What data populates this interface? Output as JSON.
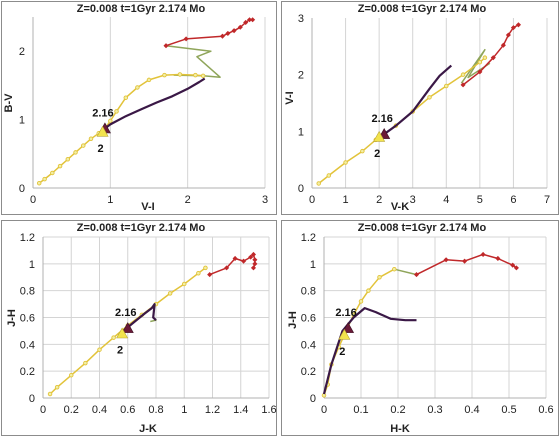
{
  "colors": {
    "yellow_track": "#E2C33A",
    "yellow_marker_face": "#F2EFA6",
    "dark_track": "#3A1846",
    "red_track": "#C0282A",
    "olive_track": "#8FA55A",
    "grid": "#D4D4D4",
    "tri_marker": "#F2E34D",
    "tri_marker_dark": "#6B1A38",
    "frame": "#8C8C8C"
  },
  "chart_data": [
    {
      "type": "scatter",
      "title": "Z=0.008  t=1Gyr  2.174 Mo",
      "xlabel": "V-I",
      "ylabel": "B-V",
      "xlim": [
        0,
        3
      ],
      "ylim": [
        0,
        2.5
      ],
      "xticks": [
        "0",
        "1",
        "2",
        "3"
      ],
      "yticks": [
        "0",
        "1",
        "2"
      ],
      "xtick_values": [
        0,
        1,
        2,
        3
      ],
      "ytick_values": [
        0,
        1,
        2
      ],
      "grid": "vertical",
      "series": [
        {
          "role": "yellow",
          "values": [
            [
              0.08,
              0.07
            ],
            [
              0.15,
              0.13
            ],
            [
              0.25,
              0.22
            ],
            [
              0.35,
              0.32
            ],
            [
              0.45,
              0.42
            ],
            [
              0.55,
              0.52
            ],
            [
              0.65,
              0.62
            ],
            [
              0.75,
              0.72
            ],
            [
              0.85,
              0.8
            ],
            [
              0.93,
              0.87
            ],
            [
              1.0,
              0.98
            ],
            [
              1.08,
              1.12
            ],
            [
              1.2,
              1.32
            ],
            [
              1.35,
              1.47
            ],
            [
              1.5,
              1.58
            ],
            [
              1.7,
              1.65
            ],
            [
              1.9,
              1.66
            ],
            [
              2.1,
              1.65
            ],
            [
              2.2,
              1.64
            ]
          ]
        },
        {
          "role": "dark",
          "values": [
            [
              0.93,
              0.87
            ],
            [
              1.0,
              0.93
            ],
            [
              1.2,
              1.05
            ],
            [
              1.4,
              1.15
            ],
            [
              1.6,
              1.25
            ],
            [
              1.8,
              1.34
            ],
            [
              2.0,
              1.45
            ],
            [
              2.15,
              1.55
            ],
            [
              2.22,
              1.6
            ]
          ]
        },
        {
          "role": "olive",
          "values": [
            [
              1.82,
              1.65
            ],
            [
              2.2,
              1.64
            ],
            [
              2.42,
              1.62
            ],
            [
              2.12,
              1.92
            ],
            [
              2.3,
              2.0
            ],
            [
              1.72,
              2.08
            ]
          ]
        },
        {
          "role": "red",
          "values": [
            [
              1.72,
              2.08
            ],
            [
              1.98,
              2.18
            ],
            [
              2.45,
              2.22
            ],
            [
              2.52,
              2.26
            ],
            [
              2.6,
              2.3
            ],
            [
              2.68,
              2.35
            ],
            [
              2.75,
              2.42
            ],
            [
              2.8,
              2.46
            ],
            [
              2.84,
              2.46
            ]
          ]
        }
      ],
      "markers": [
        {
          "label": "2.16",
          "x": 0.93,
          "y": 0.87,
          "kind": "dark"
        },
        {
          "label": "2",
          "x": 0.9,
          "y": 0.82,
          "kind": "yellow"
        }
      ]
    },
    {
      "type": "scatter",
      "title": "Z=0.008  t=1Gyr  2.174 Mo",
      "xlabel": "V-K",
      "ylabel": "V-I",
      "xlim": [
        0,
        7
      ],
      "ylim": [
        0,
        3
      ],
      "xticks": [
        "0",
        "1",
        "2",
        "3",
        "4",
        "5",
        "6",
        "7"
      ],
      "yticks": [
        "0",
        "1",
        "2",
        "3"
      ],
      "xtick_values": [
        0,
        1,
        2,
        3,
        4,
        5,
        6,
        7
      ],
      "ytick_values": [
        0,
        1,
        2,
        3
      ],
      "grid": "vertical",
      "series": [
        {
          "role": "yellow",
          "values": [
            [
              0.2,
              0.08
            ],
            [
              0.5,
              0.22
            ],
            [
              1.0,
              0.45
            ],
            [
              1.5,
              0.65
            ],
            [
              1.9,
              0.85
            ],
            [
              2.1,
              0.93
            ],
            [
              2.5,
              1.1
            ],
            [
              3.0,
              1.35
            ],
            [
              3.5,
              1.6
            ],
            [
              4.0,
              1.8
            ],
            [
              4.5,
              2.0
            ],
            [
              5.0,
              2.22
            ],
            [
              5.15,
              2.3
            ]
          ]
        },
        {
          "role": "dark",
          "values": [
            [
              2.1,
              0.93
            ],
            [
              2.5,
              1.1
            ],
            [
              3.0,
              1.35
            ],
            [
              3.5,
              1.75
            ],
            [
              3.8,
              1.98
            ],
            [
              4.15,
              2.16
            ]
          ]
        },
        {
          "role": "olive",
          "values": [
            [
              4.45,
              1.85
            ],
            [
              5.15,
              2.44
            ],
            [
              4.65,
              1.95
            ],
            [
              5.3,
              2.2
            ]
          ]
        },
        {
          "role": "red",
          "values": [
            [
              4.5,
              1.82
            ],
            [
              5.0,
              2.05
            ],
            [
              5.4,
              2.3
            ],
            [
              5.7,
              2.52
            ],
            [
              5.85,
              2.7
            ],
            [
              6.0,
              2.83
            ],
            [
              6.15,
              2.88
            ]
          ]
        }
      ],
      "markers": [
        {
          "label": "2.16",
          "x": 2.15,
          "y": 0.95,
          "kind": "dark"
        },
        {
          "label": "2",
          "x": 2.0,
          "y": 0.9,
          "kind": "yellow"
        }
      ]
    },
    {
      "type": "scatter",
      "title": "Z=0.008  t=1Gyr  2.174 Mo",
      "xlabel": "J-K",
      "ylabel": "J-H",
      "xlim": [
        0,
        1.6
      ],
      "ylim": [
        0,
        1.2
      ],
      "xticks": [
        "0",
        "0.2",
        "0.4",
        "0.6",
        "0.8",
        "1",
        "1.2",
        "1.4",
        "1.6"
      ],
      "yticks": [
        "0",
        "0.2",
        "0.4",
        "0.6",
        "0.8",
        "1",
        "1.2"
      ],
      "xtick_values": [
        0,
        0.2,
        0.4,
        0.6,
        0.8,
        1,
        1.2,
        1.4,
        1.6
      ],
      "ytick_values": [
        0,
        0.2,
        0.4,
        0.6,
        0.8,
        1,
        1.2
      ],
      "grid": "both",
      "series": [
        {
          "role": "yellow",
          "values": [
            [
              0.05,
              0.03
            ],
            [
              0.1,
              0.08
            ],
            [
              0.2,
              0.17
            ],
            [
              0.3,
              0.26
            ],
            [
              0.4,
              0.36
            ],
            [
              0.5,
              0.45
            ],
            [
              0.6,
              0.54
            ],
            [
              0.7,
              0.62
            ],
            [
              0.8,
              0.7
            ],
            [
              0.9,
              0.78
            ],
            [
              1.0,
              0.85
            ],
            [
              1.1,
              0.93
            ],
            [
              1.15,
              0.97
            ]
          ]
        },
        {
          "role": "dark",
          "values": [
            [
              0.57,
              0.5
            ],
            [
              0.65,
              0.57
            ],
            [
              0.72,
              0.63
            ],
            [
              0.77,
              0.67
            ],
            [
              0.79,
              0.7
            ],
            [
              0.78,
              0.6
            ],
            [
              0.8,
              0.58
            ]
          ]
        },
        {
          "role": "olive",
          "values": [
            [
              0.78,
              0.6
            ],
            [
              0.8,
              0.58
            ],
            [
              0.76,
              0.57
            ]
          ]
        },
        {
          "role": "red",
          "values": [
            [
              1.18,
              0.92
            ],
            [
              1.3,
              0.97
            ],
            [
              1.36,
              1.04
            ],
            [
              1.42,
              1.02
            ],
            [
              1.47,
              1.05
            ],
            [
              1.49,
              1.07
            ],
            [
              1.5,
              1.03
            ],
            [
              1.5,
              1.0
            ],
            [
              1.49,
              0.97
            ]
          ]
        }
      ],
      "markers": [
        {
          "label": "2.16",
          "x": 0.6,
          "y": 0.52,
          "kind": "dark"
        },
        {
          "label": "2",
          "x": 0.56,
          "y": 0.48,
          "kind": "yellow"
        }
      ]
    },
    {
      "type": "scatter",
      "title": "Z=0.008  t=1Gyr  2.174 Mo",
      "xlabel": "H-K",
      "ylabel": "J-H",
      "xlim": [
        0,
        0.6
      ],
      "ylim": [
        0,
        1.2
      ],
      "xticks": [
        "0",
        "0.1",
        "0.2",
        "0.3",
        "0.4",
        "0.5",
        "0.6"
      ],
      "yticks": [
        "0",
        "0.2",
        "0.4",
        "0.6",
        "0.8",
        "1",
        "1.2"
      ],
      "xtick_values": [
        0,
        0.1,
        0.2,
        0.3,
        0.4,
        0.5,
        0.6
      ],
      "ytick_values": [
        0,
        0.2,
        0.4,
        0.6,
        0.8,
        1,
        1.2
      ],
      "grid": "both",
      "series": [
        {
          "role": "yellow",
          "values": [
            [
              0.0,
              0.02
            ],
            [
              0.01,
              0.1
            ],
            [
              0.02,
              0.25
            ],
            [
              0.04,
              0.38
            ],
            [
              0.06,
              0.5
            ],
            [
              0.08,
              0.62
            ],
            [
              0.1,
              0.72
            ],
            [
              0.12,
              0.8
            ],
            [
              0.15,
              0.9
            ],
            [
              0.19,
              0.96
            ]
          ]
        },
        {
          "role": "dark",
          "values": [
            [
              0.0,
              0.03
            ],
            [
              0.02,
              0.25
            ],
            [
              0.05,
              0.5
            ],
            [
              0.08,
              0.6
            ],
            [
              0.11,
              0.67
            ],
            [
              0.14,
              0.64
            ],
            [
              0.18,
              0.59
            ],
            [
              0.22,
              0.58
            ],
            [
              0.25,
              0.58
            ]
          ]
        },
        {
          "role": "olive",
          "values": [
            [
              0.19,
              0.96
            ],
            [
              0.25,
              0.92
            ]
          ]
        },
        {
          "role": "red",
          "values": [
            [
              0.25,
              0.92
            ],
            [
              0.33,
              1.03
            ],
            [
              0.38,
              1.02
            ],
            [
              0.43,
              1.07
            ],
            [
              0.47,
              1.04
            ],
            [
              0.51,
              0.99
            ],
            [
              0.52,
              0.97
            ]
          ]
        }
      ],
      "markers": [
        {
          "label": "2.16",
          "x": 0.065,
          "y": 0.52,
          "kind": "dark"
        },
        {
          "label": "2",
          "x": 0.055,
          "y": 0.47,
          "kind": "yellow"
        }
      ]
    }
  ]
}
